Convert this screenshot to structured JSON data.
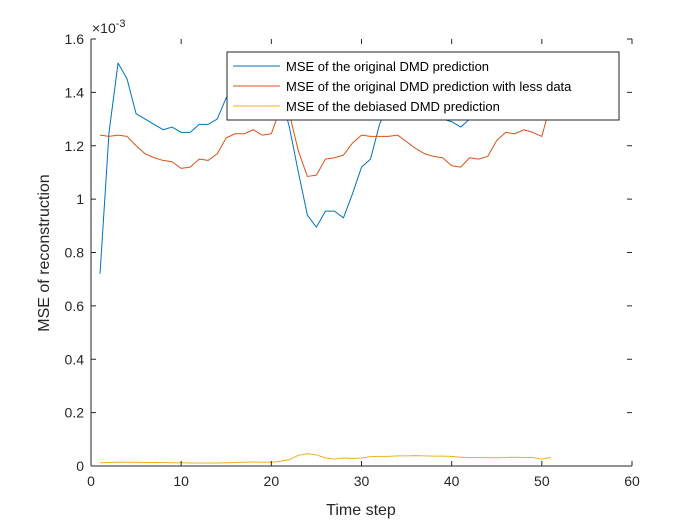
{
  "chart_data": {
    "type": "line",
    "title": "",
    "xlabel": "Time step",
    "ylabel": "MSE of reconstruction",
    "xlim": [
      0,
      60
    ],
    "ylim": [
      0,
      1.6
    ],
    "y_multiplier_base": "×10",
    "y_multiplier_exp": "-3",
    "xticks": [
      "0",
      "10",
      "20",
      "30",
      "40",
      "50",
      "60"
    ],
    "yticks": [
      "0",
      "0.2",
      "0.4",
      "0.6",
      "0.8",
      "1",
      "1.2",
      "1.4",
      "1.6"
    ],
    "grid": false,
    "legend_position": "top-right",
    "x": [
      1,
      2,
      3,
      4,
      5,
      6,
      7,
      8,
      9,
      10,
      11,
      12,
      13,
      14,
      15,
      16,
      17,
      18,
      19,
      20,
      21,
      22,
      23,
      24,
      25,
      26,
      27,
      28,
      29,
      30,
      31,
      32,
      33,
      34,
      35,
      36,
      37,
      38,
      39,
      40,
      41,
      42,
      43,
      44,
      45,
      46,
      47,
      48,
      49,
      50,
      51
    ],
    "series": [
      {
        "name": "MSE of the original DMD prediction",
        "color": "#0072BD",
        "values": [
          0.72,
          1.25,
          1.51,
          1.45,
          1.32,
          1.3,
          1.28,
          1.26,
          1.27,
          1.25,
          1.25,
          1.28,
          1.28,
          1.3,
          1.38,
          1.42,
          1.42,
          1.42,
          1.41,
          1.42,
          1.4,
          1.27,
          1.1,
          0.94,
          0.895,
          0.955,
          0.955,
          0.93,
          1.02,
          1.12,
          1.15,
          1.28,
          1.36,
          1.4,
          1.36,
          1.33,
          1.32,
          1.32,
          1.3,
          1.29,
          1.27,
          1.3,
          1.3,
          1.31,
          1.33,
          1.34,
          1.35,
          1.36,
          1.36,
          1.36,
          1.39
        ]
      },
      {
        "name": "MSE of the original DMD prediction with less data",
        "color": "#D95319",
        "values": [
          1.24,
          1.235,
          1.24,
          1.235,
          1.2,
          1.17,
          1.155,
          1.145,
          1.14,
          1.115,
          1.12,
          1.15,
          1.145,
          1.17,
          1.23,
          1.245,
          1.245,
          1.26,
          1.24,
          1.245,
          1.34,
          1.32,
          1.18,
          1.085,
          1.09,
          1.15,
          1.155,
          1.165,
          1.21,
          1.24,
          1.235,
          1.235,
          1.235,
          1.24,
          1.215,
          1.19,
          1.17,
          1.16,
          1.155,
          1.125,
          1.12,
          1.155,
          1.15,
          1.16,
          1.22,
          1.25,
          1.245,
          1.26,
          1.25,
          1.235,
          1.36
        ]
      },
      {
        "name": "MSE of the debiased DMD prediction",
        "color": "#EDB120",
        "values": [
          0.012,
          0.013,
          0.014,
          0.014,
          0.014,
          0.013,
          0.013,
          0.013,
          0.012,
          0.012,
          0.011,
          0.011,
          0.011,
          0.011,
          0.012,
          0.013,
          0.014,
          0.015,
          0.014,
          0.014,
          0.018,
          0.024,
          0.04,
          0.046,
          0.042,
          0.03,
          0.026,
          0.03,
          0.028,
          0.03,
          0.035,
          0.036,
          0.036,
          0.038,
          0.038,
          0.039,
          0.038,
          0.037,
          0.037,
          0.036,
          0.033,
          0.032,
          0.032,
          0.031,
          0.031,
          0.032,
          0.033,
          0.032,
          0.032,
          0.026,
          0.032
        ]
      }
    ]
  }
}
